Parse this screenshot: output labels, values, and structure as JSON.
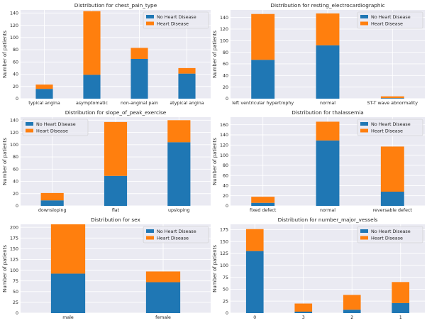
{
  "legend_labels": [
    "No Heart Disease",
    "Heart Disease"
  ],
  "colors": {
    "no_heart_disease": "#1f77b4",
    "heart_disease": "#ff7f0e",
    "plot_bg": "#eaeaf2",
    "grid": "#ffffff"
  },
  "chart_data": [
    {
      "type": "bar",
      "stacked": true,
      "grid": true,
      "legend_position": "top-right",
      "title": "Distribution for chest_pain_type",
      "ylabel": "Number of patients",
      "categories": [
        "typical angina",
        "asymptomatic",
        "non-anginal pain",
        "atypical angina"
      ],
      "series": [
        {
          "name": "No Heart Disease",
          "values": [
            16,
            39,
            65,
            41
          ]
        },
        {
          "name": "Heart Disease",
          "values": [
            7,
            104,
            18,
            9
          ]
        }
      ],
      "ylim": [
        0,
        145
      ],
      "yticks": [
        0,
        20,
        40,
        60,
        80,
        100,
        120,
        140
      ]
    },
    {
      "type": "bar",
      "stacked": true,
      "grid": true,
      "legend_position": "top-right",
      "title": "Distribution for resting_electrocardiographic",
      "ylabel": "Number of patients",
      "categories": [
        "left ventricular hypertrophy",
        "normal",
        "ST-T wave abnormality"
      ],
      "series": [
        {
          "name": "No Heart Disease",
          "values": [
            67,
            92,
            1
          ]
        },
        {
          "name": "Heart Disease",
          "values": [
            79,
            55,
            3
          ]
        }
      ],
      "ylim": [
        0,
        153
      ],
      "yticks": [
        0,
        20,
        40,
        60,
        80,
        100,
        120,
        140
      ]
    },
    {
      "type": "bar",
      "stacked": true,
      "grid": true,
      "legend_position": "top-left",
      "title": "Distribution for slope_of_peak_exercise",
      "ylabel": "Number of patients",
      "categories": [
        "downsloping",
        "flat",
        "upsloping"
      ],
      "series": [
        {
          "name": "No Heart Disease",
          "values": [
            9,
            49,
            104
          ]
        },
        {
          "name": "Heart Disease",
          "values": [
            12,
            88,
            36
          ]
        }
      ],
      "ylim": [
        0,
        145
      ],
      "yticks": [
        0,
        20,
        40,
        60,
        80,
        100,
        120,
        140
      ]
    },
    {
      "type": "bar",
      "stacked": true,
      "grid": true,
      "legend_position": "top-right",
      "title": "Distribution for thalassemia",
      "ylabel": "Number of patients",
      "categories": [
        "fixed defect",
        "normal",
        "reversable defect"
      ],
      "series": [
        {
          "name": "No Heart Disease",
          "values": [
            6,
            129,
            28
          ]
        },
        {
          "name": "Heart Disease",
          "values": [
            12,
            37,
            89
          ]
        }
      ],
      "ylim": [
        0,
        175
      ],
      "yticks": [
        0,
        20,
        40,
        60,
        80,
        100,
        120,
        140,
        160
      ]
    },
    {
      "type": "bar",
      "stacked": true,
      "grid": true,
      "legend_position": "top-right",
      "title": "Distribution for sex",
      "ylabel": "Number of patients",
      "categories": [
        "male",
        "female"
      ],
      "series": [
        {
          "name": "No Heart Disease",
          "values": [
            92,
            72
          ]
        },
        {
          "name": "Heart Disease",
          "values": [
            115,
            25
          ]
        }
      ],
      "ylim": [
        0,
        207
      ],
      "yticks": [
        0,
        25,
        50,
        75,
        100,
        125,
        150,
        175,
        200
      ]
    },
    {
      "type": "bar",
      "stacked": true,
      "grid": true,
      "legend_position": "top-right",
      "title": "Distribution for number_major_vessels",
      "ylabel": "Number of patients",
      "categories": [
        "0",
        "3",
        "2",
        "1"
      ],
      "series": [
        {
          "name": "No Heart Disease",
          "values": [
            130,
            3,
            7,
            21
          ]
        },
        {
          "name": "Heart Disease",
          "values": [
            46,
            17,
            31,
            44
          ]
        }
      ],
      "ylim": [
        0,
        186
      ],
      "yticks": [
        0,
        25,
        50,
        75,
        100,
        125,
        150,
        175
      ]
    }
  ]
}
